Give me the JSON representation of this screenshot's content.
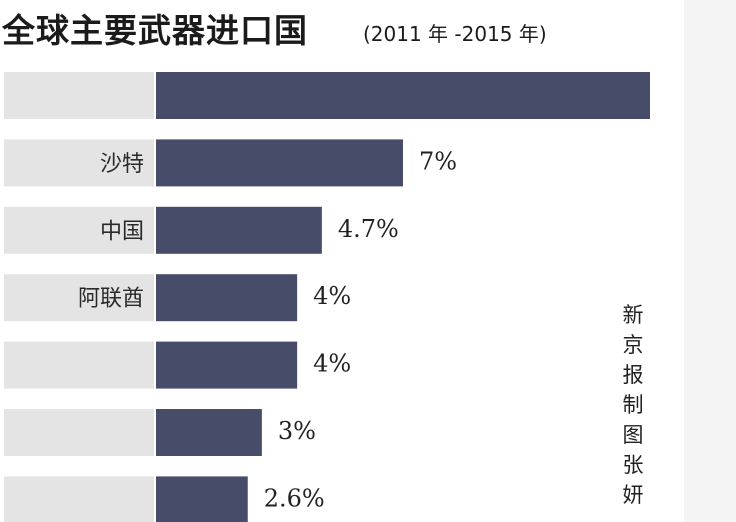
{
  "title": "全球主要武器进口国",
  "subtitle": "(2011 年 -2015 年)",
  "credit": "新京报制图张妍",
  "colors": {
    "bar": "#474c68",
    "label_bg": "#e4e4e4",
    "label_text": "#2a2a2a",
    "value_text": "#222222"
  },
  "chart_data": {
    "type": "bar",
    "orientation": "horizontal",
    "categories": [
      "",
      "沙特",
      "中国",
      "阿联酋",
      "",
      "",
      ""
    ],
    "values": [
      14,
      7,
      4.7,
      4,
      4,
      3,
      2.6
    ],
    "value_labels": [
      "",
      "7%",
      "4.7%",
      "4%",
      "4%",
      "3%",
      "2.6%"
    ],
    "title": "全球主要武器进口国",
    "subtitle": "(2011 年 -2015 年)",
    "xlim": [
      0,
      14
    ],
    "grid": false,
    "legend": "none"
  }
}
